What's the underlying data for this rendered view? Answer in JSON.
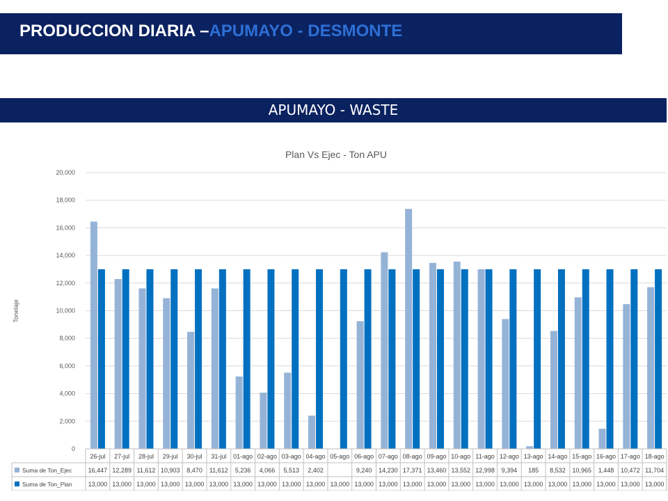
{
  "header": {
    "title_main": "PRODUCCION DIARIA –",
    "title_accent": "APUMAYO - DESMONTE"
  },
  "section": {
    "label": "APUMAYO - WASTE"
  },
  "colors": {
    "banner": "#0b2260",
    "title_accent": "#2e6fd6",
    "series_ejec": "#95b3d7",
    "series_plan": "#0070c0",
    "grid": "#d9d9d9"
  },
  "chart_data": {
    "type": "bar",
    "title": "Plan Vs Ejec - Ton APU",
    "ylabel": "Tonelaje",
    "xlabel": "",
    "ylim": [
      0,
      20000
    ],
    "yticks": [
      "0",
      "2,000",
      "4,000",
      "6,000",
      "8,000",
      "10,000",
      "12,000",
      "14,000",
      "16,000",
      "18,000",
      "20,000"
    ],
    "grid": true,
    "legend": "data-table",
    "categories": [
      "26-jul",
      "27-jul",
      "28-jul",
      "29-jul",
      "30-jul",
      "31-jul",
      "01-ago",
      "02-ago",
      "03-ago",
      "04-ago",
      "05-ago",
      "06-ago",
      "07-ago",
      "08-ago",
      "09-ago",
      "10-ago",
      "11-ago",
      "12-ago",
      "13-ago",
      "14-ago",
      "15-ago",
      "16-ago",
      "17-ago",
      "18-ago"
    ],
    "series": [
      {
        "name": "Suma de Ton_Ejec",
        "values": [
          16447,
          12289,
          11612,
          10903,
          8470,
          11612,
          5236,
          4066,
          5513,
          2402,
          null,
          9240,
          14230,
          17371,
          13460,
          13552,
          12998,
          9394,
          185,
          8532,
          10965,
          1448,
          10472,
          11704
        ],
        "labels": [
          "16,447",
          "12,289",
          "11,612",
          "10,903",
          "8,470",
          "11,612",
          "5,236",
          "4,066",
          "5,513",
          "2,402",
          "",
          "9,240",
          "14,230",
          "17,371",
          "13,460",
          "13,552",
          "12,998",
          "9,394",
          "185",
          "8,532",
          "10,965",
          "1,448",
          "10,472",
          "11,704"
        ]
      },
      {
        "name": "Suma de Ton_Plan",
        "values": [
          13000,
          13000,
          13000,
          13000,
          13000,
          13000,
          13000,
          13000,
          13000,
          13000,
          13000,
          13000,
          13000,
          13000,
          13000,
          13000,
          13000,
          13000,
          13000,
          13000,
          13000,
          13000,
          13000,
          13000
        ],
        "labels": [
          "13,000",
          "13,000",
          "13,000",
          "13,000",
          "13,000",
          "13,000",
          "13,000",
          "13,000",
          "13,000",
          "13,000",
          "13,000",
          "13,000",
          "13,000",
          "13,000",
          "13,000",
          "13,000",
          "13,000",
          "13,000",
          "13,000",
          "13,000",
          "13,000",
          "13,000",
          "13,000",
          "13,000"
        ]
      }
    ]
  }
}
